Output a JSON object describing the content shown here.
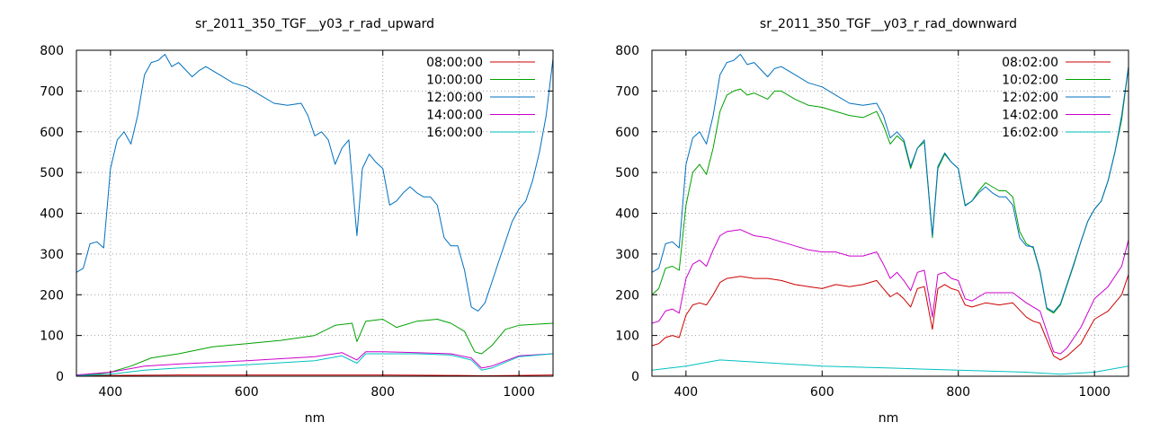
{
  "chart_data": [
    {
      "type": "line",
      "title": "sr_2011_350_TGF__y03_r_rad_upward",
      "xlabel": "nm",
      "ylabel": "",
      "xlim": [
        350,
        1050
      ],
      "ylim": [
        0,
        800
      ],
      "xticks": [
        400,
        600,
        800,
        1000
      ],
      "yticks": [
        0,
        100,
        200,
        300,
        400,
        500,
        600,
        700,
        800
      ],
      "grid": true,
      "legend_position": "top-right",
      "series": [
        {
          "name": "08:00:00",
          "color": "#cc0000",
          "x": [
            350,
            400,
            500,
            600,
            700,
            800,
            900,
            950,
            1000,
            1050
          ],
          "y": [
            1,
            2,
            3,
            3,
            3,
            3,
            2,
            1,
            2,
            3
          ]
        },
        {
          "name": "10:00:00",
          "color": "#00a000",
          "x": [
            350,
            380,
            400,
            430,
            460,
            500,
            550,
            600,
            650,
            700,
            730,
            755,
            762,
            775,
            800,
            820,
            850,
            880,
            900,
            920,
            935,
            945,
            960,
            980,
            1000,
            1050
          ],
          "y": [
            3,
            5,
            10,
            25,
            45,
            55,
            72,
            80,
            88,
            100,
            125,
            130,
            85,
            135,
            140,
            120,
            135,
            140,
            130,
            110,
            60,
            55,
            75,
            115,
            125,
            130
          ]
        },
        {
          "name": "12:00:00",
          "color": "#0070c0",
          "x": [
            350,
            360,
            370,
            380,
            390,
            400,
            410,
            420,
            430,
            440,
            450,
            460,
            470,
            480,
            490,
            500,
            520,
            530,
            540,
            560,
            580,
            600,
            620,
            640,
            660,
            680,
            690,
            700,
            710,
            720,
            730,
            740,
            750,
            762,
            770,
            780,
            790,
            800,
            810,
            820,
            830,
            840,
            850,
            860,
            870,
            880,
            890,
            900,
            910,
            920,
            930,
            940,
            950,
            960,
            970,
            980,
            990,
            1000,
            1010,
            1020,
            1030,
            1040,
            1050
          ],
          "y": [
            255,
            265,
            325,
            330,
            315,
            510,
            580,
            600,
            570,
            640,
            740,
            770,
            775,
            790,
            760,
            770,
            735,
            750,
            760,
            740,
            720,
            710,
            690,
            670,
            665,
            670,
            640,
            590,
            600,
            580,
            520,
            560,
            580,
            345,
            510,
            545,
            525,
            510,
            420,
            430,
            450,
            465,
            450,
            440,
            440,
            420,
            340,
            320,
            320,
            260,
            170,
            160,
            180,
            230,
            280,
            330,
            380,
            410,
            430,
            480,
            550,
            640,
            780
          ]
        },
        {
          "name": "14:00:00",
          "color": "#cc00cc",
          "x": [
            350,
            400,
            450,
            500,
            600,
            700,
            740,
            762,
            775,
            800,
            850,
            900,
            930,
            945,
            960,
            1000,
            1050
          ],
          "y": [
            3,
            10,
            25,
            30,
            38,
            48,
            58,
            40,
            60,
            60,
            58,
            55,
            45,
            20,
            25,
            50,
            55
          ]
        },
        {
          "name": "16:00:00",
          "color": "#00c0c0",
          "x": [
            350,
            400,
            450,
            500,
            600,
            700,
            740,
            762,
            775,
            800,
            850,
            900,
            930,
            945,
            960,
            1000,
            1050
          ],
          "y": [
            1,
            5,
            15,
            20,
            28,
            38,
            50,
            32,
            55,
            55,
            55,
            52,
            40,
            15,
            20,
            48,
            55
          ]
        }
      ]
    },
    {
      "type": "line",
      "title": "sr_2011_350_TGF__y03_r_rad_downward",
      "xlabel": "nm",
      "ylabel": "",
      "xlim": [
        350,
        1050
      ],
      "ylim": [
        0,
        800
      ],
      "xticks": [
        400,
        600,
        800,
        1000
      ],
      "yticks": [
        0,
        100,
        200,
        300,
        400,
        500,
        600,
        700,
        800
      ],
      "grid": true,
      "legend_position": "top-right",
      "series": [
        {
          "name": "08:02:00",
          "color": "#cc0000",
          "x": [
            350,
            360,
            370,
            380,
            390,
            400,
            410,
            420,
            430,
            440,
            450,
            460,
            480,
            500,
            520,
            540,
            560,
            580,
            600,
            620,
            640,
            660,
            680,
            690,
            700,
            710,
            720,
            730,
            740,
            750,
            762,
            770,
            780,
            790,
            800,
            810,
            820,
            840,
            860,
            880,
            900,
            910,
            920,
            930,
            940,
            950,
            960,
            980,
            1000,
            1020,
            1040,
            1050
          ],
          "y": [
            75,
            80,
            95,
            100,
            95,
            150,
            175,
            180,
            175,
            200,
            230,
            240,
            245,
            240,
            240,
            235,
            225,
            220,
            215,
            225,
            220,
            225,
            235,
            215,
            195,
            205,
            190,
            170,
            215,
            220,
            115,
            215,
            225,
            215,
            210,
            175,
            170,
            180,
            175,
            180,
            145,
            135,
            130,
            90,
            50,
            40,
            50,
            80,
            140,
            160,
            200,
            250
          ]
        },
        {
          "name": "10:02:00",
          "color": "#00a000",
          "x": [
            350,
            360,
            370,
            380,
            390,
            400,
            410,
            420,
            430,
            440,
            450,
            460,
            470,
            480,
            490,
            500,
            520,
            530,
            540,
            560,
            580,
            600,
            620,
            640,
            660,
            680,
            690,
            700,
            710,
            720,
            730,
            740,
            750,
            762,
            770,
            780,
            790,
            800,
            810,
            820,
            830,
            840,
            850,
            860,
            870,
            880,
            890,
            900,
            910,
            920,
            930,
            940,
            950,
            960,
            970,
            980,
            990,
            1000,
            1010,
            1020,
            1030,
            1040,
            1050
          ],
          "y": [
            200,
            215,
            265,
            270,
            260,
            420,
            500,
            520,
            495,
            560,
            650,
            690,
            700,
            705,
            690,
            695,
            680,
            700,
            700,
            680,
            665,
            660,
            650,
            640,
            635,
            650,
            615,
            570,
            590,
            575,
            510,
            560,
            575,
            340,
            510,
            545,
            525,
            510,
            420,
            430,
            455,
            475,
            465,
            455,
            455,
            440,
            355,
            325,
            315,
            255,
            165,
            155,
            175,
            225,
            275,
            330,
            380,
            410,
            430,
            480,
            550,
            630,
            760
          ]
        },
        {
          "name": "12:02:00",
          "color": "#0070c0",
          "x": [
            350,
            360,
            370,
            380,
            390,
            400,
            410,
            420,
            430,
            440,
            450,
            460,
            470,
            480,
            490,
            500,
            520,
            530,
            540,
            560,
            580,
            600,
            620,
            640,
            660,
            680,
            690,
            700,
            710,
            720,
            730,
            740,
            750,
            762,
            770,
            780,
            790,
            800,
            810,
            820,
            830,
            840,
            850,
            860,
            870,
            880,
            890,
            900,
            910,
            920,
            930,
            940,
            950,
            960,
            970,
            980,
            990,
            1000,
            1010,
            1020,
            1030,
            1040,
            1050
          ],
          "y": [
            255,
            265,
            325,
            330,
            315,
            520,
            585,
            600,
            570,
            640,
            740,
            770,
            775,
            790,
            765,
            770,
            735,
            755,
            760,
            740,
            720,
            710,
            690,
            670,
            665,
            670,
            640,
            585,
            600,
            580,
            515,
            560,
            580,
            345,
            515,
            548,
            525,
            510,
            418,
            430,
            450,
            465,
            450,
            440,
            440,
            420,
            340,
            320,
            318,
            258,
            168,
            158,
            178,
            228,
            278,
            330,
            380,
            410,
            430,
            480,
            550,
            640,
            760
          ]
        },
        {
          "name": "14:02:00",
          "color": "#cc00cc",
          "x": [
            350,
            360,
            370,
            380,
            390,
            400,
            410,
            420,
            430,
            440,
            450,
            460,
            480,
            500,
            520,
            540,
            560,
            580,
            600,
            620,
            640,
            660,
            680,
            690,
            700,
            710,
            720,
            730,
            740,
            750,
            762,
            770,
            780,
            790,
            800,
            810,
            820,
            840,
            860,
            880,
            900,
            910,
            920,
            930,
            940,
            950,
            960,
            980,
            1000,
            1020,
            1040,
            1050
          ],
          "y": [
            130,
            135,
            160,
            165,
            155,
            240,
            275,
            285,
            270,
            310,
            345,
            355,
            360,
            345,
            340,
            330,
            320,
            310,
            305,
            305,
            295,
            295,
            305,
            275,
            240,
            255,
            235,
            210,
            255,
            260,
            145,
            250,
            255,
            240,
            235,
            190,
            185,
            205,
            205,
            205,
            180,
            170,
            160,
            110,
            60,
            55,
            70,
            120,
            190,
            220,
            270,
            335
          ]
        },
        {
          "name": "16:02:00",
          "color": "#00c0c0",
          "x": [
            350,
            400,
            450,
            500,
            600,
            700,
            800,
            900,
            950,
            1000,
            1050
          ],
          "y": [
            15,
            25,
            40,
            35,
            25,
            20,
            15,
            10,
            5,
            10,
            25
          ]
        }
      ]
    }
  ]
}
